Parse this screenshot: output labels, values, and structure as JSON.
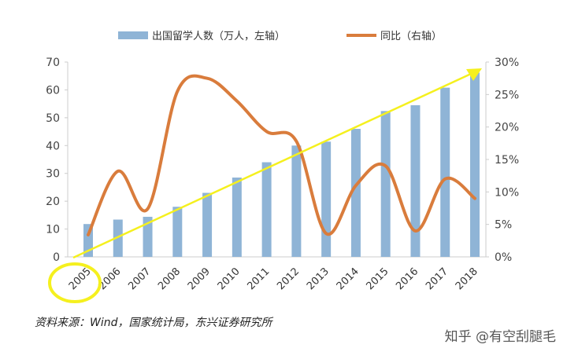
{
  "chart_data": {
    "type": "bar+line",
    "categories": [
      "2005",
      "2006",
      "2007",
      "2008",
      "2009",
      "2010",
      "2011",
      "2012",
      "2013",
      "2014",
      "2015",
      "2016",
      "2017",
      "2018"
    ],
    "series": [
      {
        "name": "出国留学人数（万人，左轴）",
        "type": "bar",
        "axis": "left",
        "color": "#8fb4d6",
        "values": [
          11.8,
          13.4,
          14.4,
          18.0,
          23.0,
          28.5,
          34.0,
          40.0,
          41.4,
          46.0,
          52.4,
          54.5,
          60.8,
          66.2
        ]
      },
      {
        "name": "同比（右轴）",
        "type": "line",
        "axis": "right",
        "color": "#d97c3c",
        "values": [
          3.4,
          13.2,
          7.4,
          25.5,
          27.5,
          24.0,
          19.3,
          17.8,
          3.6,
          11.0,
          14.0,
          4.0,
          12.0,
          9.0
        ]
      }
    ],
    "ylim_left": [
      0,
      70
    ],
    "yticks_left": [
      "0",
      "10",
      "20",
      "30",
      "40",
      "50",
      "60",
      "70"
    ],
    "ylim_right": [
      0,
      30
    ],
    "yticks_right": [
      "0%",
      "5%",
      "10%",
      "15%",
      "20%",
      "25%",
      "30%"
    ],
    "legend_position": "top",
    "grid": false,
    "annotations": {
      "trend_arrow_color": "#f5f01e",
      "highlight_circle_category": "2005"
    }
  },
  "source": "资料来源：Wind，国家统计局，东兴证券研究所",
  "watermark": "知乎 @有空刮腿毛"
}
